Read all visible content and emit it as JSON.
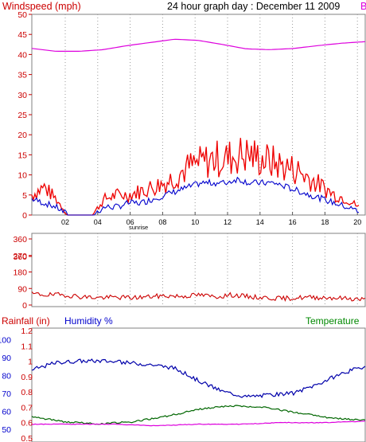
{
  "colors": {
    "wind_axis": "#cc0000",
    "wind_max": "#ee0000",
    "wind_avg": "#0000cc",
    "pressure": "#dd00dd",
    "direction": "#cc0000",
    "humidity": "#0000aa",
    "temperature": "#006600",
    "rain_axis": "#cc0000",
    "hum_axis": "#0000cc",
    "temp_label": "#008800",
    "grid": "#999999",
    "frame": "#808080"
  },
  "header": {
    "wind_title": "Windspeed (mph)",
    "graph_title": "24 hour graph day : December 11 2009",
    "right_marker": "B"
  },
  "bottom_header": {
    "rainfall": "Rainfall (in)",
    "humidity": "Humidity %",
    "temperature": "Temperature"
  },
  "chart_data": [
    {
      "type": "line",
      "title": "Windspeed (mph)",
      "ylim": [
        0,
        50
      ],
      "y_ticks": [
        "0",
        "5",
        "10",
        "15",
        "20",
        "25",
        "30",
        "35",
        "40",
        "45",
        "50"
      ],
      "x_ticks": [
        "02",
        "04",
        "06",
        "08",
        "10",
        "12",
        "14",
        "16",
        "18",
        "20"
      ],
      "sunrise_label": "sunrise",
      "series": [
        {
          "key": "gust",
          "values": [
            5,
            7,
            4,
            0,
            0,
            0,
            4,
            5,
            5,
            6,
            7,
            8,
            10,
            12,
            13,
            14,
            14,
            15,
            15,
            14,
            13,
            12,
            11,
            9,
            7,
            5,
            4,
            2
          ]
        },
        {
          "key": "average",
          "values": [
            4,
            3,
            2,
            0,
            0,
            0,
            2,
            2,
            3,
            3,
            4,
            5,
            6,
            7,
            8,
            8,
            8,
            9,
            8,
            8,
            8,
            7,
            6,
            5,
            4,
            3,
            2,
            1
          ]
        },
        {
          "key": "pressure",
          "values": [
            41.5,
            40.8,
            40.8,
            41.2,
            42.2,
            43.0,
            43.8,
            43.5,
            42.5,
            41.4,
            41.2,
            41.5,
            42.2,
            42.8,
            43.2
          ]
        }
      ]
    },
    {
      "type": "line",
      "ylim": [
        0,
        360
      ],
      "y_ticks": [
        "0",
        "90",
        "180",
        "270",
        "360",
        "360"
      ],
      "series": [
        {
          "key": "direction",
          "values": [
            60,
            55,
            55,
            45,
            40,
            42,
            40,
            45,
            50,
            48,
            55,
            45,
            55,
            45,
            40,
            35,
            40,
            42,
            40,
            35,
            30
          ]
        }
      ]
    },
    {
      "type": "line",
      "y_ticks_rain": [
        "0.5",
        "0.6",
        "0.7",
        "0.8",
        "0.9",
        "1",
        "1.1",
        "1.2"
      ],
      "y_ticks_hum": [
        "50",
        "60",
        "70",
        "80",
        "90",
        "100"
      ],
      "ylim_rain": [
        0.5,
        1.2
      ],
      "ylim_hum": [
        45,
        105
      ],
      "series": [
        {
          "key": "humidity",
          "values": [
            83,
            87,
            88,
            88,
            87,
            86,
            84,
            77,
            71,
            68,
            69,
            70,
            75,
            81,
            85
          ]
        },
        {
          "key": "temperature",
          "values": [
            57,
            54,
            53,
            54,
            57,
            61,
            63,
            62,
            59,
            56,
            55
          ]
        },
        {
          "key": "rainfall",
          "values": [
            0.59,
            0.59,
            0.59,
            0.58,
            0.59,
            0.59,
            0.6,
            0.6,
            0.61
          ]
        }
      ]
    }
  ]
}
